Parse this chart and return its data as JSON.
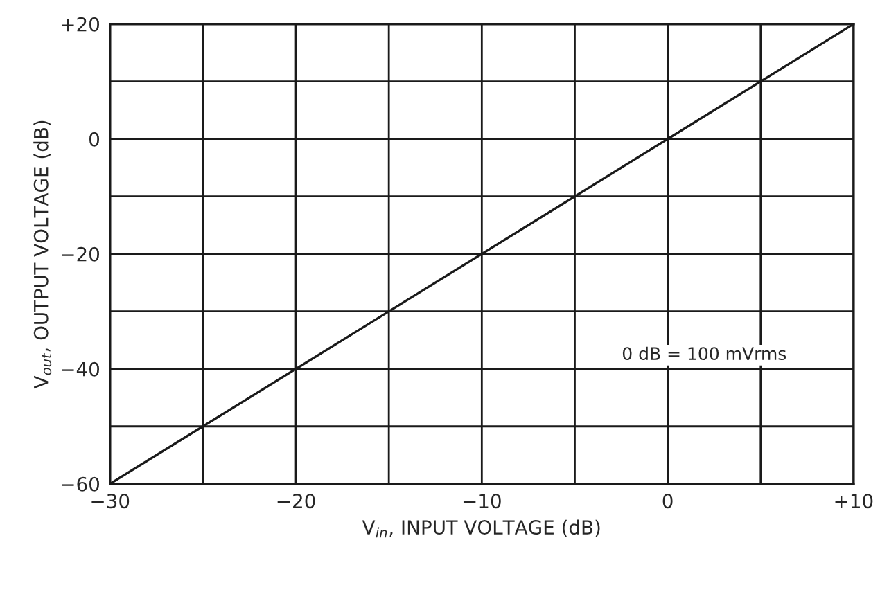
{
  "chart_data": {
    "type": "line",
    "xlabel": "V$_{in}$, INPUT VOLTAGE (dB)",
    "ylabel": "V$_{out}$, OUTPUT VOLTAGE (dB)",
    "annotations": [
      "0 dB = 100 mVrms"
    ],
    "x": [
      -30,
      10
    ],
    "series": [
      {
        "color": "#1a1a1a",
        "values": [
          -60,
          20
        ]
      }
    ],
    "xlim": [
      -30,
      10
    ],
    "xticks": [
      {
        "value": -30,
        "label": "−30"
      },
      {
        "value": -25,
        "label": null
      },
      {
        "value": -20,
        "label": "−20"
      },
      {
        "value": -15,
        "label": null
      },
      {
        "value": -10,
        "label": "−10"
      },
      {
        "value": -5,
        "label": null
      },
      0,
      {
        "value": 5,
        "label": null
      },
      {
        "value": 10,
        "label": "+10"
      }
    ],
    "ylim": [
      -60,
      20
    ],
    "yticks": [
      {
        "value": -60,
        "label": "−60"
      },
      {
        "value": -50,
        "label": null
      },
      {
        "value": -40,
        "label": "−40"
      },
      {
        "value": -30,
        "label": null
      },
      {
        "value": -20,
        "label": "−20"
      },
      {
        "value": -10,
        "label": null
      },
      0,
      {
        "value": 10,
        "label": null
      },
      {
        "value": 20,
        "label": "+20"
      }
    ],
    "grid": true,
    "line_style": "solid",
    "marker": "none"
  }
}
